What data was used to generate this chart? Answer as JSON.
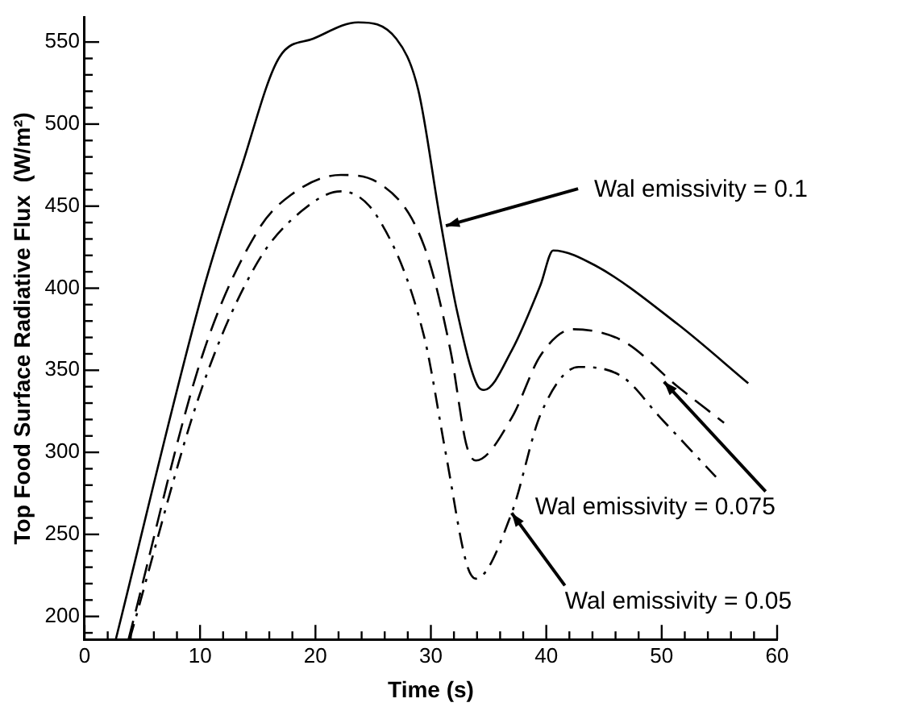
{
  "chart_data": {
    "type": "line",
    "xlabel": "Time (s)",
    "ylabel": "Top Food Surface Radiative Flux  (W/m²)",
    "xlim": [
      0,
      60
    ],
    "xticks": [
      0,
      {
        "value": 2,
        "label": null
      },
      {
        "value": 4,
        "label": null
      },
      {
        "value": 6,
        "label": null
      },
      {
        "value": 8,
        "label": null
      },
      10,
      {
        "value": 12,
        "label": null
      },
      {
        "value": 14,
        "label": null
      },
      {
        "value": 16,
        "label": null
      },
      {
        "value": 18,
        "label": null
      },
      20,
      {
        "value": 22,
        "label": null
      },
      {
        "value": 24,
        "label": null
      },
      {
        "value": 26,
        "label": null
      },
      {
        "value": 28,
        "label": null
      },
      30,
      {
        "value": 32,
        "label": null
      },
      {
        "value": 34,
        "label": null
      },
      {
        "value": 36,
        "label": null
      },
      {
        "value": 38,
        "label": null
      },
      40,
      {
        "value": 42,
        "label": null
      },
      {
        "value": 44,
        "label": null
      },
      {
        "value": 46,
        "label": null
      },
      {
        "value": 48,
        "label": null
      },
      50,
      {
        "value": 52,
        "label": null
      },
      {
        "value": 54,
        "label": null
      },
      {
        "value": 56,
        "label": null
      },
      {
        "value": 58,
        "label": null
      },
      60
    ],
    "ylim": [
      186,
      565
    ],
    "yticks": [
      {
        "value": 190,
        "label": null
      },
      200,
      {
        "value": 210,
        "label": null
      },
      {
        "value": 220,
        "label": null
      },
      {
        "value": 230,
        "label": null
      },
      {
        "value": 240,
        "label": null
      },
      250,
      {
        "value": 260,
        "label": null
      },
      {
        "value": 270,
        "label": null
      },
      {
        "value": 280,
        "label": null
      },
      {
        "value": 290,
        "label": null
      },
      300,
      {
        "value": 310,
        "label": null
      },
      {
        "value": 320,
        "label": null
      },
      {
        "value": 330,
        "label": null
      },
      {
        "value": 340,
        "label": null
      },
      350,
      {
        "value": 360,
        "label": null
      },
      {
        "value": 370,
        "label": null
      },
      {
        "value": 380,
        "label": null
      },
      {
        "value": 390,
        "label": null
      },
      400,
      {
        "value": 410,
        "label": null
      },
      {
        "value": 420,
        "label": null
      },
      {
        "value": 430,
        "label": null
      },
      {
        "value": 440,
        "label": null
      },
      450,
      {
        "value": 460,
        "label": null
      },
      {
        "value": 470,
        "label": null
      },
      {
        "value": 480,
        "label": null
      },
      {
        "value": 490,
        "label": null
      },
      500,
      {
        "value": 510,
        "label": null
      },
      {
        "value": 520,
        "label": null
      },
      {
        "value": 530,
        "label": null
      },
      {
        "value": 540,
        "label": null
      },
      550
    ],
    "grid": false,
    "legend": false,
    "marker": "none",
    "series": [
      {
        "color": "#000000",
        "line_style": "solid",
        "x": [
          2.7,
          10.2,
          13.6,
          16.9,
          19.8,
          23.7,
          27,
          28.9,
          30.8,
          32.3,
          34.1,
          34.6,
          37,
          39.5,
          40.6,
          44.2,
          51.4,
          57.5
        ],
        "values": [
          186,
          397,
          474,
          541,
          552,
          562,
          552,
          521,
          442,
          385,
          340,
          338,
          362,
          402,
          423,
          414,
          378,
          342
        ]
      },
      {
        "color": "#000000",
        "line_style": "dashed",
        "x": [
          3.8,
          10.2,
          15,
          17.9,
          22.2,
          25.5,
          29.4,
          31.7,
          33.1,
          33.9,
          37,
          39.5,
          42.3,
          46.6,
          51.4,
          55.4
        ],
        "values": [
          186,
          359,
          435,
          457,
          469,
          464,
          426,
          362,
          304,
          295,
          321,
          359,
          375,
          368,
          340,
          318
        ]
      },
      {
        "color": "#000000",
        "line_style": "dashdot",
        "x": [
          3.9,
          10.2,
          15,
          18.8,
          22.2,
          25.5,
          29.4,
          31.3,
          33.1,
          33.9,
          37,
          39.5,
          42.8,
          46.6,
          49.9,
          54.7
        ],
        "values": [
          186,
          340,
          416,
          447,
          459,
          442,
          371,
          299,
          232,
          223,
          263,
          323,
          352,
          346,
          321,
          285
        ]
      }
    ],
    "annotations": [
      {
        "text": "Wal emissivity = 0.1",
        "x": 31.3,
        "y": 438
      },
      {
        "text": "Wal emissivity = 0.075",
        "x": 50.2,
        "y": 343
      },
      {
        "text": "Wal emissivity = 0.05",
        "x": 37,
        "y": 263
      }
    ]
  }
}
